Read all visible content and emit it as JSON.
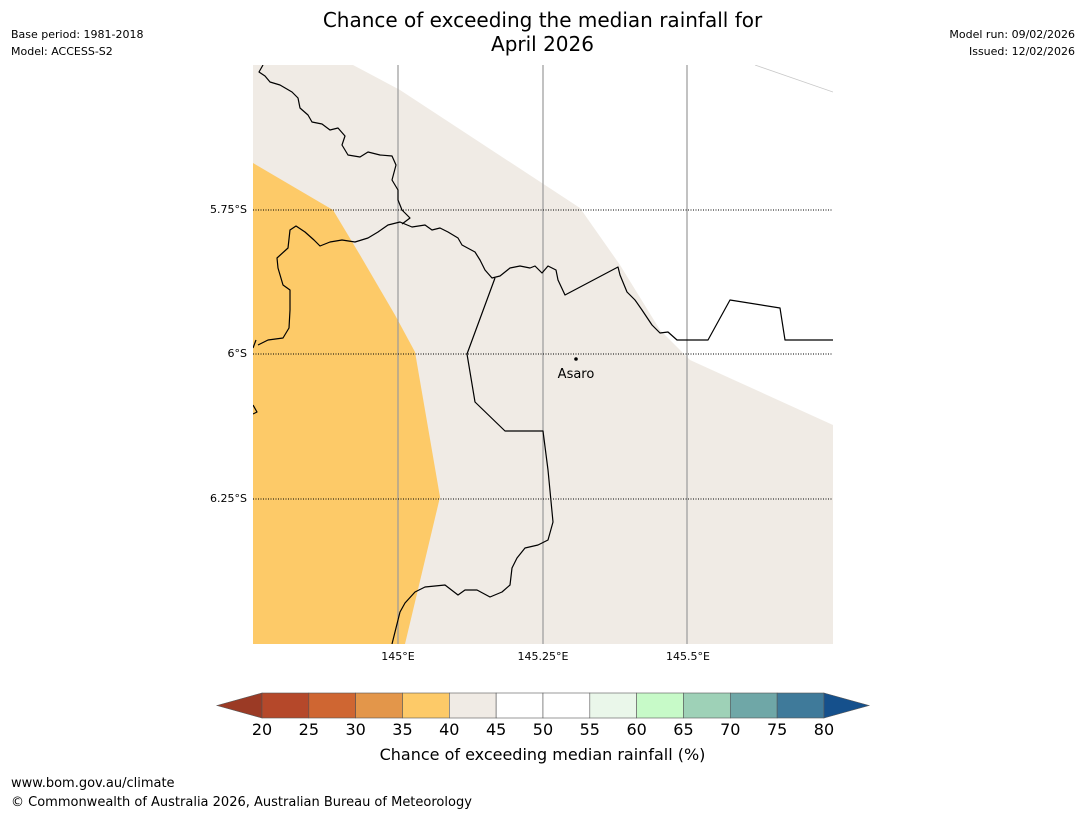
{
  "title": {
    "line1": "Chance of exceeding the median rainfall for",
    "line2": "April 2026"
  },
  "meta_left": {
    "base_period": "Base period: 1981-2018",
    "model": "Model: ACCESS-S2"
  },
  "meta_right": {
    "model_run": "Model run: 09/02/2026",
    "issued": "Issued: 12/02/2026"
  },
  "map": {
    "lat_labels": [
      "5.75°S",
      "6°S",
      "6.25°S"
    ],
    "lon_labels": [
      "145°E",
      "145.25°E",
      "145.5°E"
    ],
    "place": "Asaro",
    "colors": {
      "below_35_40": "#fdca68",
      "neutral_40_45": "#f0ebe5",
      "neutral_45_55": "#ffffff",
      "border": "#000000",
      "grid": "#9a9a9a"
    }
  },
  "colorbar": {
    "ticks": [
      "20",
      "25",
      "30",
      "35",
      "40",
      "45",
      "50",
      "55",
      "60",
      "65",
      "70",
      "75",
      "80"
    ],
    "label": "Chance of exceeding median rainfall (%)",
    "colors": [
      "#9b3a25",
      "#b5482a",
      "#cf6632",
      "#e3964a",
      "#fdca68",
      "#f0ebe5",
      "#ffffff",
      "#ffffff",
      "#eaf7ea",
      "#c7fac8",
      "#9ed1b7",
      "#6fa7a7",
      "#3f7a9a",
      "#15508c"
    ]
  },
  "footer": {
    "url": "www.bom.gov.au/climate",
    "copyright": "© Commonwealth of Australia 2026, Australian Bureau of Meteorology"
  }
}
